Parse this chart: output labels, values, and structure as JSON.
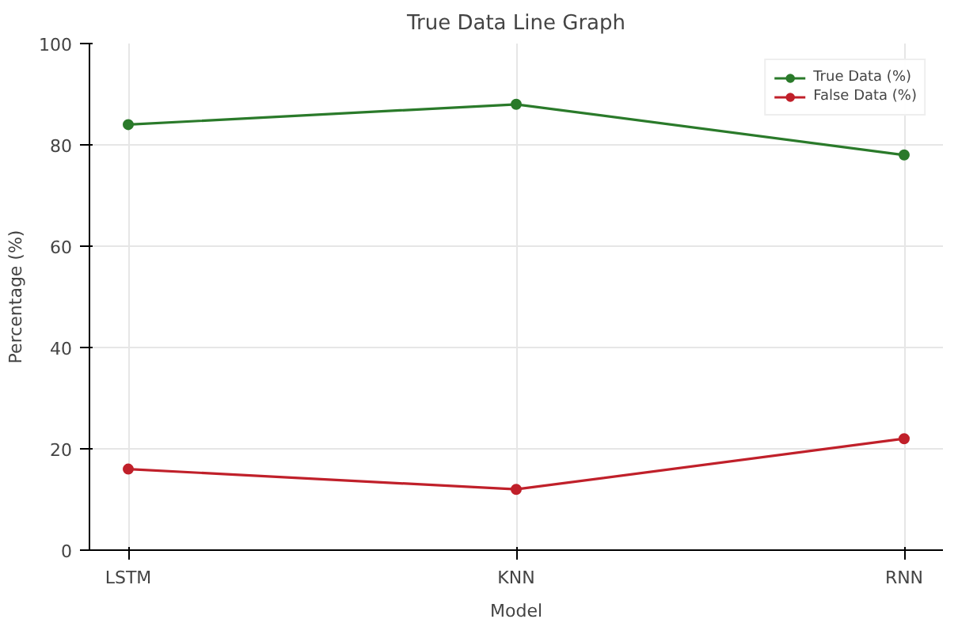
{
  "chart_data": {
    "type": "line",
    "title": "True Data Line Graph",
    "xlabel": "Model",
    "ylabel": "Percentage (%)",
    "categories": [
      "LSTM",
      "KNN",
      "RNN"
    ],
    "series": [
      {
        "name": "True Data (%)",
        "color": "#2a7a2a",
        "values": [
          84,
          88,
          78
        ]
      },
      {
        "name": "False Data (%)",
        "color": "#c0202a",
        "values": [
          16,
          12,
          22
        ]
      }
    ],
    "ylim": [
      0,
      100
    ],
    "yticks": [
      0,
      20,
      40,
      60,
      80,
      100
    ],
    "grid": true,
    "legend": "top right",
    "marker": "circle",
    "line_style": "solid"
  }
}
